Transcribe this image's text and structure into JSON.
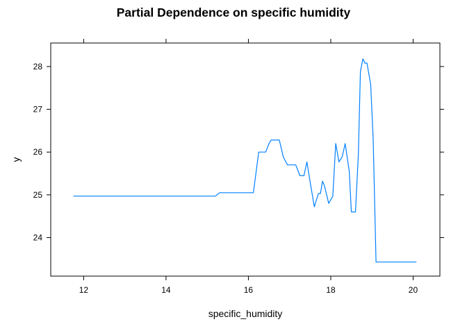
{
  "chart_data": {
    "type": "line",
    "title": "Partial Dependence on specific humidity",
    "xlabel": "specific_humidity",
    "ylabel": "y",
    "xlim": [
      11.2,
      20.65
    ],
    "ylim": [
      23.1,
      28.55
    ],
    "xticks": [
      12,
      14,
      16,
      18,
      20
    ],
    "yticks": [
      24,
      25,
      26,
      27,
      28
    ],
    "line_color": "#0080ff",
    "grid": false,
    "legend": "none",
    "series": [
      {
        "x": [
          11.75,
          15.2,
          15.3,
          16.12,
          16.25,
          16.42,
          16.5,
          16.55,
          16.75,
          16.85,
          16.95,
          17.0,
          17.15,
          17.25,
          17.35,
          17.42,
          17.5,
          17.6,
          17.7,
          17.75,
          17.8,
          17.85,
          17.95,
          18.05,
          18.12,
          18.2,
          18.28,
          18.35,
          18.45,
          18.5,
          18.6,
          18.67,
          18.72,
          18.78,
          18.83,
          18.88,
          18.97,
          19.03,
          19.1,
          20.08
        ],
        "y": [
          24.97,
          24.97,
          25.05,
          25.05,
          26.0,
          26.0,
          26.2,
          26.28,
          26.28,
          25.88,
          25.7,
          25.7,
          25.7,
          25.45,
          25.45,
          25.77,
          25.3,
          24.72,
          25.03,
          25.03,
          25.32,
          25.2,
          24.8,
          24.97,
          26.2,
          25.77,
          25.9,
          26.2,
          25.55,
          24.6,
          24.6,
          25.95,
          27.88,
          28.18,
          28.08,
          28.08,
          27.58,
          26.3,
          23.43,
          23.43
        ]
      }
    ]
  }
}
